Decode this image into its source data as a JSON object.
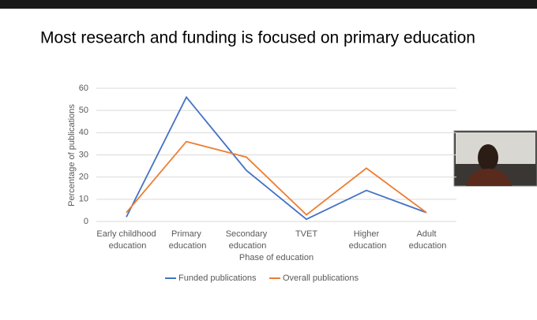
{
  "chart_data": {
    "type": "line",
    "title": "Most research and funding is focused on primary education",
    "categories": [
      "Early childhood education",
      "Primary education",
      "Secondary education",
      "TVET",
      "Higher education",
      "Adult education"
    ],
    "series": [
      {
        "name": "Funded publications",
        "color": "#4472c4",
        "values": [
          2,
          56,
          23,
          1,
          14,
          4
        ]
      },
      {
        "name": "Overall publications",
        "color": "#ed7d31",
        "values": [
          4,
          36,
          29,
          3,
          24,
          4
        ]
      }
    ],
    "xlabel": "Phase of education",
    "ylabel": "Percentage of publications",
    "ylim": [
      0,
      60
    ],
    "yticks": [
      0,
      10,
      20,
      30,
      40,
      50,
      60
    ],
    "grid": true
  }
}
